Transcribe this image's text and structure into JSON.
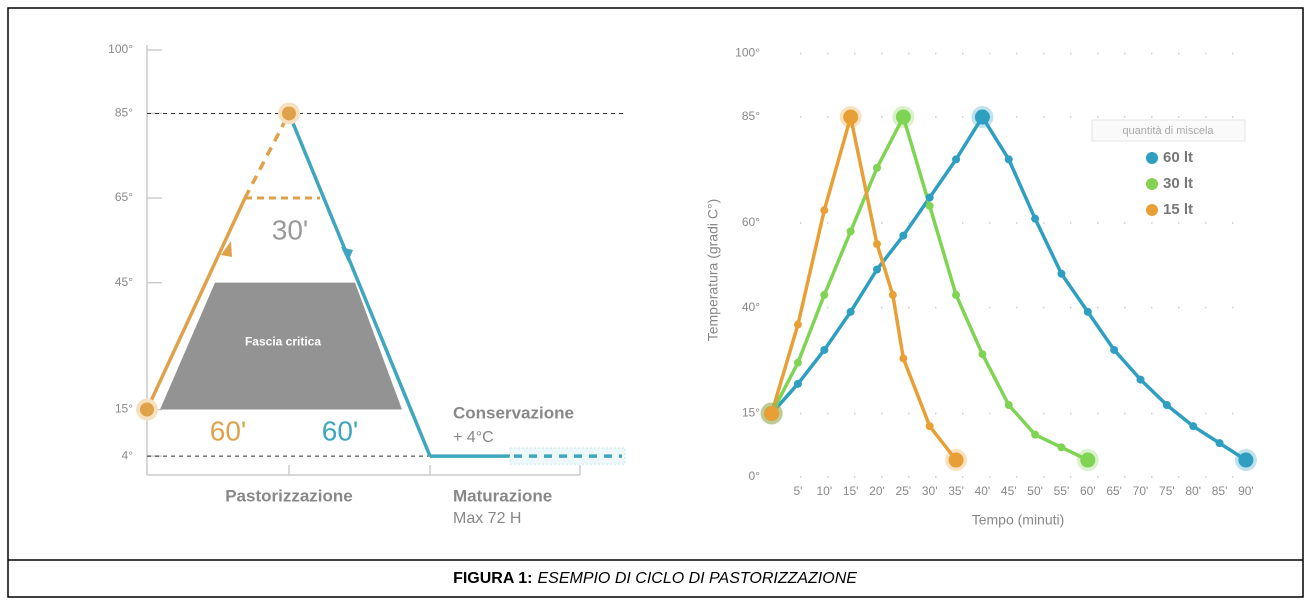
{
  "chart_data": [
    {
      "type": "cycle",
      "ylim": [
        0,
        100
      ],
      "yticks": [
        {
          "value": 100,
          "label": "100°"
        },
        {
          "value": 85,
          "label": "85°"
        },
        {
          "value": 65,
          "label": "65°"
        },
        {
          "value": 45,
          "label": "45°"
        },
        {
          "value": 15,
          "label": "15°"
        },
        {
          "value": 4,
          "label": "4°"
        }
      ],
      "series": [
        {
          "color": "#dfa24a",
          "values": [
            15,
            65,
            85
          ]
        },
        {
          "color": "#3ea6bd",
          "values": [
            85,
            4,
            4
          ]
        }
      ],
      "reference_lines": [
        85,
        4
      ],
      "critical_band": {
        "label": "Fascia critica",
        "range": [
          15,
          45
        ]
      },
      "durations": [
        "30'",
        "60'",
        "60'"
      ],
      "phases": [
        "Pastorizzazione",
        "Maturazione"
      ],
      "phase_note": "Max 72 H",
      "storage": {
        "label": "Conservazione",
        "temperature": "+ 4°C"
      }
    },
    {
      "type": "line",
      "xlabel": "Tempo (minuti)",
      "ylabel": "Temperatura (gradi C°)",
      "xlim": [
        0,
        95
      ],
      "ylim": [
        0,
        100
      ],
      "xticks": [
        {
          "value": 5,
          "label": "5'"
        },
        {
          "value": 10,
          "label": "10'"
        },
        {
          "value": 15,
          "label": "15'"
        },
        {
          "value": 20,
          "label": "20'"
        },
        {
          "value": 25,
          "label": "25'"
        },
        {
          "value": 30,
          "label": "30'"
        },
        {
          "value": 35,
          "label": "35'"
        },
        {
          "value": 40,
          "label": "40'"
        },
        {
          "value": 45,
          "label": "45'"
        },
        {
          "value": 50,
          "label": "50'"
        },
        {
          "value": 55,
          "label": "55'"
        },
        {
          "value": 60,
          "label": "60'"
        },
        {
          "value": 65,
          "label": "65'"
        },
        {
          "value": 70,
          "label": "70'"
        },
        {
          "value": 75,
          "label": "75'"
        },
        {
          "value": 80,
          "label": "80'"
        },
        {
          "value": 85,
          "label": "85'"
        },
        {
          "value": 90,
          "label": "90'"
        }
      ],
      "yticks": [
        {
          "value": 0,
          "label": "0°"
        },
        {
          "value": 15,
          "label": "15°"
        },
        {
          "value": 40,
          "label": "40°"
        },
        {
          "value": 60,
          "label": "60°"
        },
        {
          "value": 85,
          "label": "85°"
        },
        {
          "value": 100,
          "label": "100°"
        }
      ],
      "grid": true,
      "legend_title": "quantità di miscela",
      "legend": "upper right",
      "series": [
        {
          "name": "60 lt",
          "color": "#2f9fc1",
          "x": [
            0,
            5,
            10,
            15,
            20,
            25,
            30,
            35,
            40,
            45,
            50,
            55,
            60,
            65,
            70,
            75,
            80,
            85,
            90
          ],
          "values": [
            15,
            22,
            30,
            39,
            49,
            57,
            66,
            75,
            85,
            75,
            61,
            48,
            39,
            30,
            23,
            17,
            12,
            8,
            4
          ]
        },
        {
          "name": "30 lt",
          "color": "#80d454",
          "x": [
            0,
            5,
            10,
            15,
            20,
            25,
            30,
            35,
            40,
            45,
            50,
            55,
            60
          ],
          "values": [
            15,
            27,
            43,
            58,
            73,
            85,
            64,
            43,
            29,
            17,
            10,
            7,
            4
          ]
        },
        {
          "name": "15 lt",
          "color": "#e8a036",
          "x": [
            0,
            5,
            10,
            15,
            20,
            23,
            25,
            30,
            35
          ],
          "values": [
            15,
            36,
            63,
            85,
            55,
            43,
            28,
            12,
            4
          ]
        }
      ]
    }
  ],
  "caption": {
    "label": "FIGURA 1:",
    "text": "ESEMPIO DI CICLO DI PASTORIZZAZIONE"
  }
}
